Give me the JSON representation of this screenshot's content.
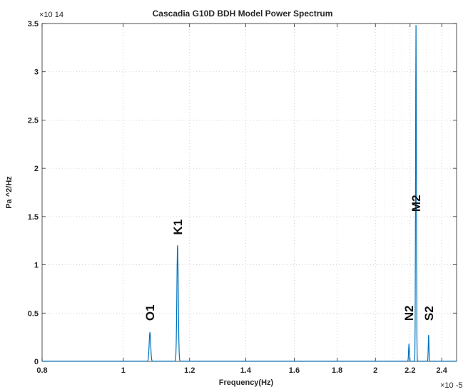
{
  "chart_data": {
    "type": "line",
    "title": "Cascadia G10D BDH Model Power Spectrum",
    "xlabel": "Frequency(Hz)",
    "ylabel": "Pa ^2/Hz",
    "x_scale": "log",
    "x_exponent": "×10 -5",
    "y_exponent": "×10 14",
    "xlim": [
      0.8,
      2.5
    ],
    "ylim": [
      0,
      3.5
    ],
    "x_ticks": [
      0.8,
      1,
      1.2,
      1.4,
      1.6,
      1.8,
      2,
      2.2,
      2.4
    ],
    "x_tick_labels": [
      "0.8",
      "1",
      "1.2",
      "1.4",
      "1.6",
      "1.8",
      "2",
      "2.2",
      "2.4"
    ],
    "y_ticks": [
      0,
      0.5,
      1,
      1.5,
      2,
      2.5,
      3,
      3.5
    ],
    "y_tick_labels": [
      "0",
      "0.5",
      "1",
      "1.5",
      "2",
      "2.5",
      "3",
      "3.5"
    ],
    "grid": true,
    "line_color": "#0072BD",
    "baseline": 0.002,
    "peaks": [
      {
        "name": "O1",
        "x": 1.076,
        "y": 0.3
      },
      {
        "name": "K1",
        "x": 1.161,
        "y": 1.2
      },
      {
        "name": "N2",
        "x": 2.193,
        "y": 0.18
      },
      {
        "name": "M2",
        "x": 2.236,
        "y": 3.48
      },
      {
        "name": "S2",
        "x": 2.315,
        "y": 0.27
      }
    ],
    "annotations": [
      {
        "text": "O1",
        "x": 1.076,
        "y": 0.42
      },
      {
        "text": "K1",
        "x": 1.161,
        "y": 1.31
      },
      {
        "text": "N2",
        "x": 2.193,
        "y": 0.42
      },
      {
        "text": "M2",
        "x": 2.236,
        "y": 1.55
      },
      {
        "text": "S2",
        "x": 2.315,
        "y": 0.42
      }
    ]
  }
}
